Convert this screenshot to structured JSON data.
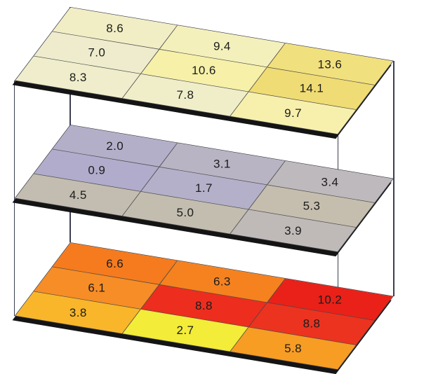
{
  "figure": {
    "background": "#ffffff",
    "connector_line_color": "#3a4050",
    "plate_edge_color": "#141414",
    "cell_border_color": "#4a4a4a",
    "label_color": "#1c1c1c"
  },
  "chart_data": {
    "type": "heatmap",
    "layout": "three stacked 3x3 heatmap slices shown in oblique 3D view, corners joined by vertical lines",
    "title": "",
    "legend": "none",
    "layers": [
      {
        "name": "top-layer",
        "rows": [
          [
            8.6,
            9.4,
            13.6
          ],
          [
            7.0,
            10.6,
            14.1
          ],
          [
            8.3,
            7.8,
            9.7
          ]
        ],
        "cell_colors": [
          [
            "#F1EEC5",
            "#F4F0BB",
            "#F1E07E"
          ],
          [
            "#EEECCD",
            "#F6F0A9",
            "#F0DC74"
          ],
          [
            "#EFEDCB",
            "#F0EEC9",
            "#F7F0AD"
          ]
        ]
      },
      {
        "name": "middle-layer",
        "rows": [
          [
            2.0,
            3.1,
            3.4
          ],
          [
            0.9,
            1.7,
            5.3
          ],
          [
            4.5,
            5.0,
            3.9
          ]
        ],
        "cell_colors": [
          [
            "#B4AFC9",
            "#B9B4C3",
            "#BEB9BD"
          ],
          [
            "#B1ACCB",
            "#B5B0C9",
            "#C5BEAE"
          ],
          [
            "#C3BDB1",
            "#C3BDB0",
            "#BFBAB8"
          ]
        ]
      },
      {
        "name": "bottom-layer",
        "rows": [
          [
            6.6,
            6.3,
            10.2
          ],
          [
            6.1,
            8.8,
            8.8
          ],
          [
            3.8,
            2.7,
            5.8
          ]
        ],
        "cell_colors": [
          [
            "#F57B1E",
            "#F5821F",
            "#E92119"
          ],
          [
            "#F68D26",
            "#ED2D1E",
            "#EC3320"
          ],
          [
            "#F9B62A",
            "#F3EC39",
            "#F79D24"
          ]
        ]
      }
    ]
  }
}
